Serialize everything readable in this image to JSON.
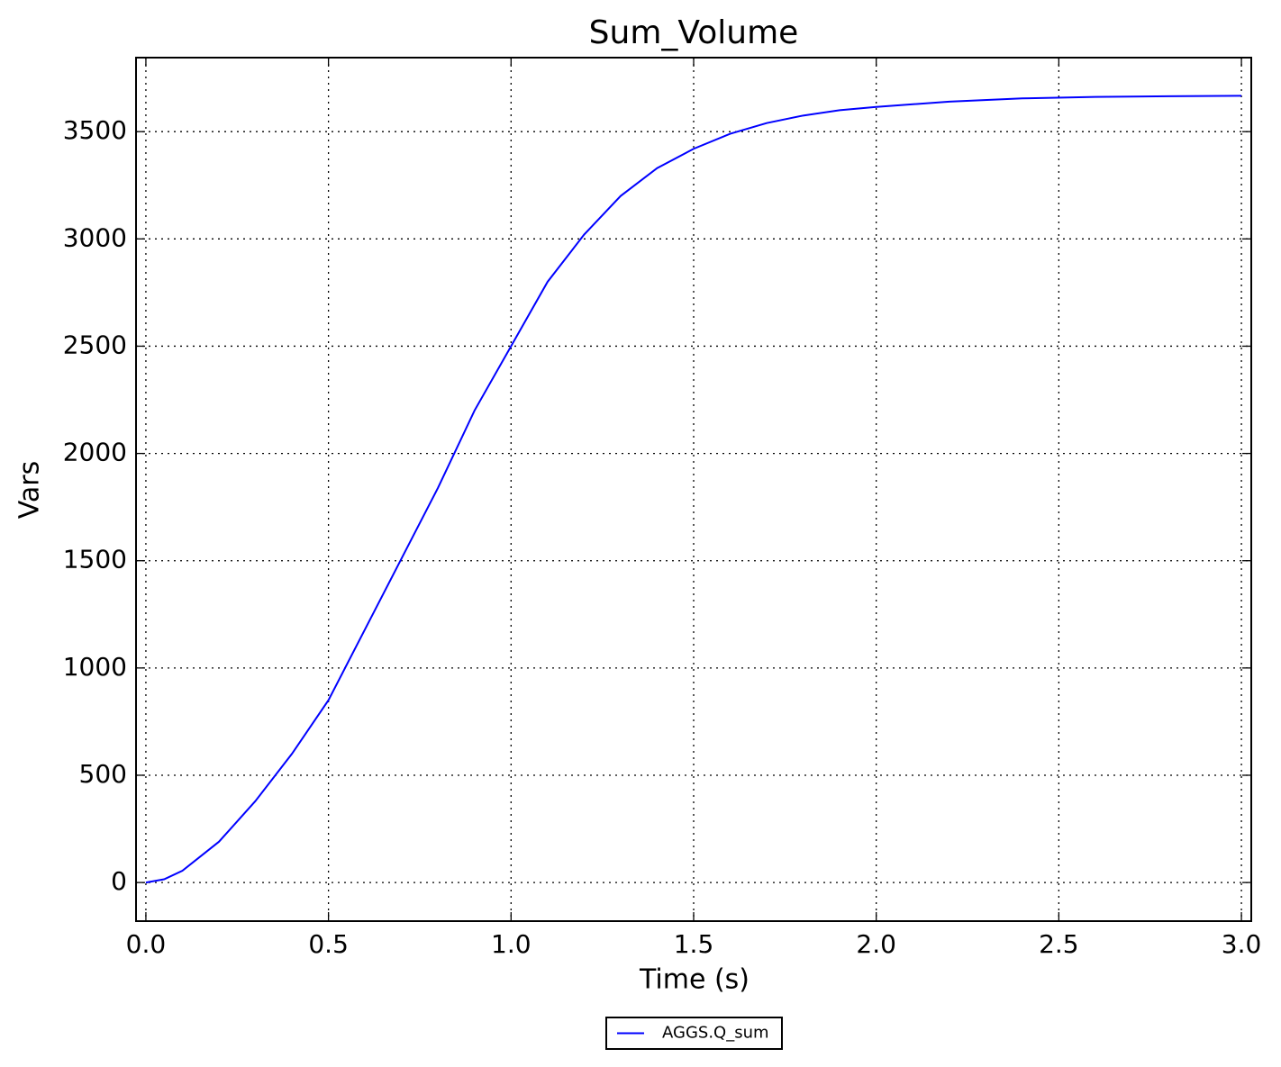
{
  "chart_data": {
    "type": "line",
    "title": "Sum_Volume",
    "x_label": "Time (s)",
    "y_label": "Vars",
    "x": [
      0,
      0.05,
      0.1,
      0.2,
      0.3,
      0.4,
      0.5,
      0.6,
      0.7,
      0.8,
      0.9,
      1.0,
      1.1,
      1.2,
      1.3,
      1.4,
      1.5,
      1.6,
      1.7,
      1.8,
      1.9,
      2.0,
      2.2,
      2.4,
      2.6,
      2.8,
      3.0
    ],
    "series": [
      {
        "name": "AGGS.Q_sum",
        "color": "#0000ff",
        "values": [
          0,
          15,
          55,
          190,
          380,
          600,
          850,
          1180,
          1510,
          1840,
          2200,
          2500,
          2800,
          3020,
          3200,
          3330,
          3420,
          3490,
          3540,
          3575,
          3600,
          3615,
          3640,
          3655,
          3662,
          3665,
          3667
        ]
      }
    ],
    "xlim": [
      -0.027,
      3.027
    ],
    "xticks": [
      {
        "value": 0,
        "label": "0.0"
      },
      {
        "value": 0.5,
        "label": "0.5"
      },
      {
        "value": 1,
        "label": "1.0"
      },
      {
        "value": 1.5,
        "label": "1.5"
      },
      {
        "value": 2,
        "label": "2.0"
      },
      {
        "value": 2.5,
        "label": "2.5"
      },
      {
        "value": 3,
        "label": "3.0"
      }
    ],
    "ylim": [
      -180,
      3845
    ],
    "yticks": [
      0,
      500,
      1000,
      1500,
      2000,
      2500,
      3000,
      3500
    ],
    "grid": true,
    "legend": "below"
  }
}
